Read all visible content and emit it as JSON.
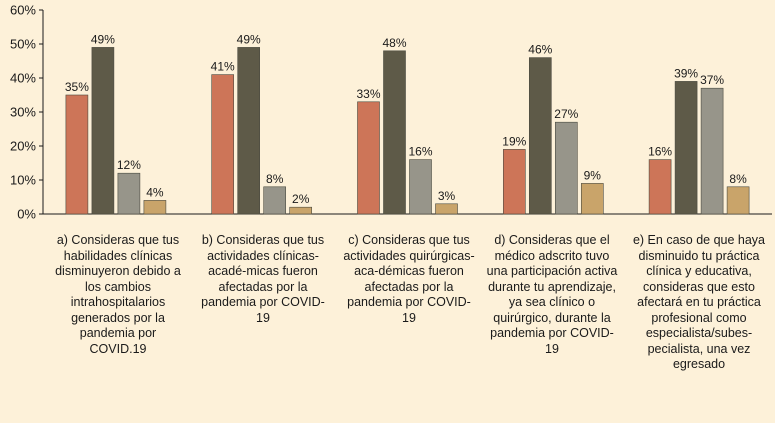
{
  "chart_data": {
    "type": "bar",
    "ylim": [
      0,
      60
    ],
    "yticks": [
      0,
      10,
      20,
      30,
      40,
      50,
      60
    ],
    "ytick_labels": [
      "0%",
      "10%",
      "20%",
      "30%",
      "40%",
      "50%",
      "60%"
    ],
    "grid": false,
    "legend": "none",
    "categories": [
      "a) Consideras que tus habilidades clínicas disminuyeron debido a los cambios intrahospitalarios generados por la pandemia por COVID.19",
      "b) Consideras que tus actividades clínicas-acadé-micas fueron afectadas por la pandemia por COVID-19",
      "c) Consideras que tus actividades quirúrgicas-aca-démicas fueron afectadas por la pandemia por COVID-19",
      "d) Consideras que el médico adscrito tuvo una participación activa durante tu aprendizaje, ya sea clínico o quirúrgico, durante la pandemia por COVID-19",
      "e) En caso de que haya disminuido tu práctica clínica y educativa, consideras que esto afectará en tu práctica profesional como especialista/subes-pecialista, una vez egresado"
    ],
    "series": [
      {
        "color": "#cd7558",
        "values": [
          35,
          41,
          33,
          19,
          16
        ],
        "labels": [
          "35%",
          "41%",
          "33%",
          "19%",
          "16%"
        ]
      },
      {
        "color": "#5e5a48",
        "values": [
          49,
          49,
          48,
          46,
          39
        ],
        "labels": [
          "49%",
          "49%",
          "48%",
          "46%",
          "39%"
        ]
      },
      {
        "color": "#97958a",
        "values": [
          12,
          8,
          16,
          27,
          37
        ],
        "labels": [
          "12%",
          "8%",
          "16%",
          "27%",
          "37%"
        ]
      },
      {
        "color": "#c9a46a",
        "values": [
          4,
          2,
          3,
          9,
          8
        ],
        "labels": [
          "4%",
          "2%",
          "3%",
          "9%",
          "8%"
        ]
      }
    ]
  }
}
